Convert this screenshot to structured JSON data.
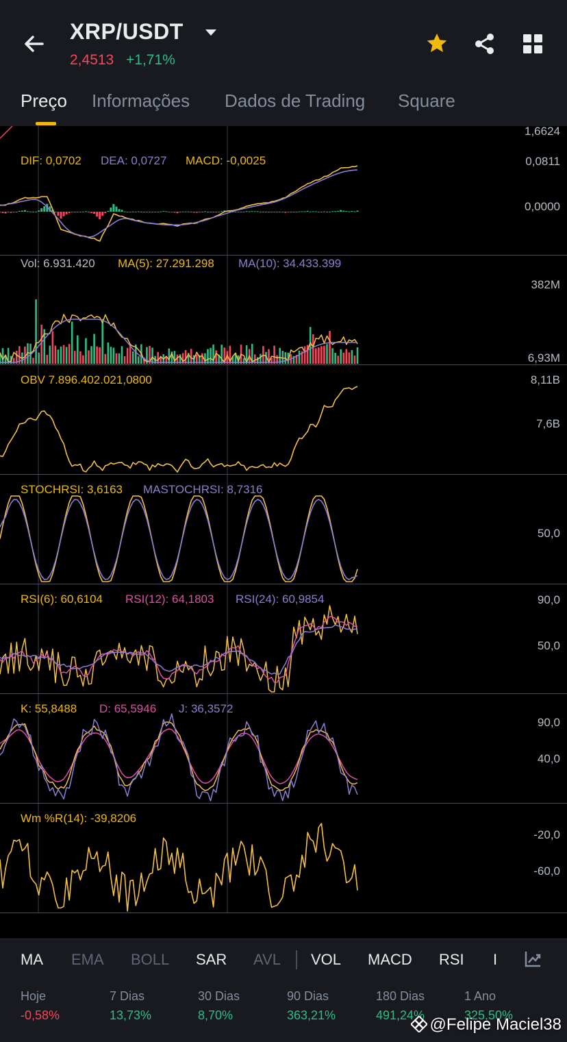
{
  "header": {
    "pair": "XRP/USDT",
    "price": "2,4513",
    "change": "+1,71%"
  },
  "tabs": [
    "Preço",
    "Informações",
    "Dados de Trading",
    "Square"
  ],
  "chart": {
    "top_axis_label": "1,6624",
    "macd": {
      "dif": "DIF: 0,0702",
      "dea": "DEA: 0,0727",
      "macd": "MACD: -0,0025",
      "axis_top": "0,0811",
      "axis_mid": "0,0000"
    },
    "vol": {
      "vol": "Vol: 6.931.420",
      "ma5": "MA(5): 27.291.298",
      "ma10": "MA(10): 34.433.399",
      "axis_top": "382M",
      "axis_bottom": "6,93M"
    },
    "obv": {
      "obv": "OBV 7.896.402.021,0800",
      "axis_top": "8,11B",
      "axis_mid": "7,6B"
    },
    "stochrsi": {
      "stoch": "STOCHRSI: 3,6163",
      "ma": "MASTOCHRSI: 8,7316",
      "axis_mid": "50,0"
    },
    "rsi": {
      "rsi6": "RSI(6): 60,6104",
      "rsi12": "RSI(12): 64,1803",
      "rsi24": "RSI(24): 60,9854",
      "axis_top": "90,0",
      "axis_mid": "50,0"
    },
    "kdj": {
      "k": "K: 55,8488",
      "d": "D: 65,5946",
      "j": "J: 36,3572",
      "axis_top": "90,0",
      "axis_mid": "40,0"
    },
    "wr": {
      "wr": "Wm %R(14): -39,8206",
      "axis_top": "-20,0",
      "axis_mid": "-60,0"
    }
  },
  "indicators": [
    "MA",
    "EMA",
    "BOLL",
    "SAR",
    "AVL",
    "VOL",
    "MACD",
    "RSI",
    "I"
  ],
  "performance": [
    {
      "label": "Hoje",
      "value": "-0,58%"
    },
    {
      "label": "7 Dias",
      "value": "13,73%"
    },
    {
      "label": "30 Dias",
      "value": "8,70%"
    },
    {
      "label": "90 Dias",
      "value": "363,21%"
    },
    {
      "label": "180 Dias",
      "value": "491,24%"
    },
    {
      "label": "1 Ano",
      "value": "325,50%"
    }
  ],
  "watermark": "@Felipe Maciel38",
  "colors": {
    "up": "#2ebd85",
    "down": "#f6465d",
    "yellow": "#f0b90b",
    "line_yellow": "#f5c04a",
    "purple": "#8b7fd1",
    "pink": "#e150a6"
  }
}
